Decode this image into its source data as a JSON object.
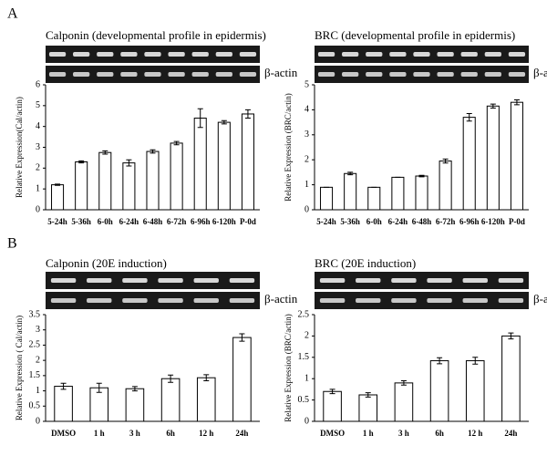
{
  "panel_labels": [
    "A",
    "B"
  ],
  "chart_data": [
    {
      "type": "bar",
      "title": "Calponin (developmental profile in epidermis)",
      "gel_label": "β-actin",
      "y_label": "Relative Expression(Cal/actin)",
      "categories": [
        "5-24h",
        "5-36h",
        "6-0h",
        "6-24h",
        "6-48h",
        "6-72h",
        "6-96h",
        "6-120h",
        "P-0d"
      ],
      "values": [
        1.2,
        2.3,
        2.75,
        2.25,
        2.8,
        3.2,
        4.4,
        4.2,
        4.6
      ],
      "errors": [
        0.03,
        0.05,
        0.08,
        0.15,
        0.08,
        0.08,
        0.45,
        0.08,
        0.2
      ],
      "color": "#ffffff",
      "ylim": [
        0,
        6
      ],
      "yticks": [
        0,
        1,
        2,
        3,
        4,
        5,
        6
      ]
    },
    {
      "type": "bar",
      "title": "BRC (developmental profile in epidermis)",
      "gel_label": "β-actin",
      "y_label": "Relative Expression (BRC/actin)",
      "categories": [
        "5-24h",
        "5-36h",
        "6-0h",
        "6-24h",
        "6-48h",
        "6-72h",
        "6-96h",
        "6-120h",
        "P-0d"
      ],
      "values": [
        0.9,
        1.45,
        0.9,
        1.3,
        1.35,
        1.95,
        3.7,
        4.15,
        4.3
      ],
      "errors": [
        0,
        0.05,
        0,
        0,
        0.03,
        0.08,
        0.15,
        0.08,
        0.1
      ],
      "color": "#ffffff",
      "ylim": [
        0,
        5
      ],
      "yticks": [
        0,
        1,
        2,
        3,
        4,
        5
      ]
    },
    {
      "type": "bar",
      "title": "Calponin (20E induction)",
      "gel_label": "β-actin",
      "y_label": "Relative Expression ( Cal/actin)",
      "categories": [
        "DMSO",
        "1 h",
        "3 h",
        "6h",
        "12 h",
        "24h"
      ],
      "values": [
        1.15,
        1.1,
        1.07,
        1.4,
        1.43,
        2.75
      ],
      "errors": [
        0.1,
        0.15,
        0.07,
        0.12,
        0.1,
        0.12
      ],
      "color": "#ffffff",
      "ylim": [
        0,
        3.5
      ],
      "yticks": [
        0,
        0.5,
        1,
        1.5,
        2,
        2.5,
        3,
        3.5
      ]
    },
    {
      "type": "bar",
      "title": "BRC (20E induction)",
      "gel_label": "β-actin",
      "y_label": "Relative Expression (BRC/actin)",
      "categories": [
        "DMSO",
        "1 h",
        "3 h",
        "6h",
        "12 h",
        "24h"
      ],
      "values": [
        0.7,
        0.62,
        0.9,
        1.42,
        1.42,
        2.0
      ],
      "errors": [
        0.05,
        0.05,
        0.05,
        0.07,
        0.08,
        0.07
      ],
      "color": "#ffffff",
      "ylim": [
        0,
        2.5
      ],
      "yticks": [
        0,
        0.5,
        1,
        1.5,
        2,
        2.5
      ]
    }
  ]
}
